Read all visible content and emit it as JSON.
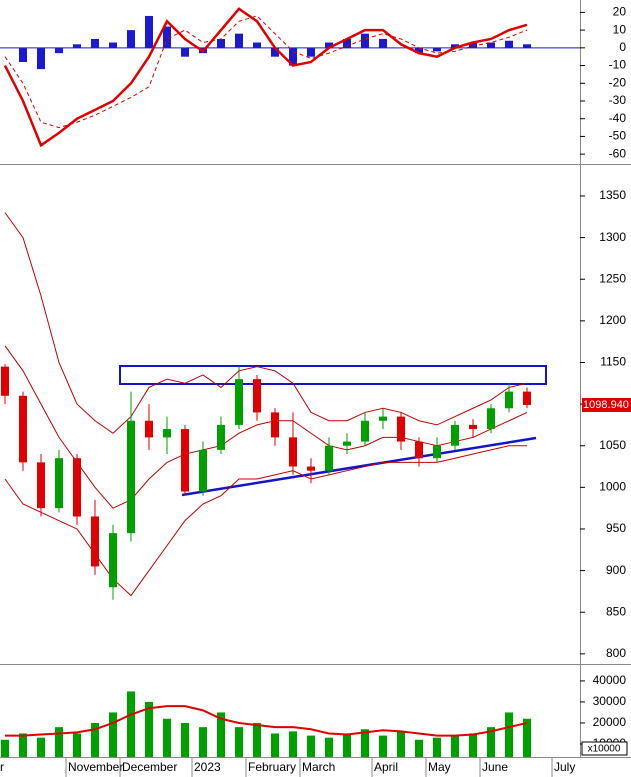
{
  "chart_data": [
    {
      "type": "macd",
      "ylim": [
        -65,
        27
      ],
      "yticks": [
        20,
        10,
        0,
        -10,
        -20,
        -30,
        -40,
        -50,
        -60
      ],
      "histogram": {
        "color": "#1a1ad0",
        "values": [
          0,
          -8,
          -12,
          -3,
          2,
          5,
          3,
          10,
          18,
          12,
          -5,
          -3,
          5,
          8,
          3,
          -5,
          -10,
          -5,
          3,
          5,
          8,
          5,
          0,
          -3,
          -2,
          2,
          3,
          3,
          4,
          2,
          null,
          null
        ]
      },
      "series": [
        {
          "color": "#e00000",
          "values": [
            -10,
            -30,
            -55,
            -48,
            -40,
            -35,
            -30,
            -20,
            -5,
            15,
            5,
            -2,
            10,
            22,
            15,
            0,
            -10,
            -8,
            0,
            5,
            10,
            10,
            2,
            -3,
            -5,
            0,
            3,
            5,
            10,
            13,
            null,
            null
          ]
        },
        {
          "color": "#e00000",
          "dashed": true,
          "values": [
            -5,
            -20,
            -42,
            -45,
            -42,
            -38,
            -33,
            -28,
            -22,
            5,
            10,
            3,
            5,
            15,
            18,
            8,
            -2,
            -6,
            -3,
            1,
            5,
            8,
            5,
            0,
            -3,
            -2,
            1,
            3,
            6,
            10,
            null,
            null
          ]
        }
      ]
    },
    {
      "type": "candlestick",
      "ylim": [
        789,
        1386
      ],
      "yticks": [
        1350,
        1300,
        1250,
        1200,
        1150,
        1100,
        1050,
        1000,
        950,
        900,
        850,
        800
      ],
      "up_color": "#00a000",
      "down_color": "#e00000",
      "open": [
        1145,
        1110,
        1030,
        975,
        1035,
        965,
        880,
        945,
        1080,
        1060,
        1070,
        995,
        1045,
        1075,
        1130,
        1090,
        1060,
        1025,
        1020,
        1050,
        1055,
        1080,
        1085,
        1055,
        1035,
        1050,
        1075,
        1070,
        1095,
        1115,
        null,
        null
      ],
      "high": [
        1148,
        1115,
        1040,
        1045,
        1040,
        985,
        955,
        1115,
        1100,
        1085,
        1075,
        1055,
        1085,
        1145,
        1135,
        1095,
        1090,
        1035,
        1060,
        1065,
        1090,
        1095,
        1090,
        1060,
        1060,
        1080,
        1082,
        1100,
        1125,
        1120,
        null,
        null
      ],
      "low": [
        1100,
        1020,
        965,
        970,
        955,
        895,
        865,
        935,
        1045,
        1040,
        990,
        990,
        1040,
        1070,
        1080,
        1050,
        1015,
        1005,
        1015,
        1040,
        1050,
        1070,
        1045,
        1025,
        1030,
        1045,
        1060,
        1065,
        1090,
        1095,
        null,
        null
      ],
      "close": [
        1110,
        1030,
        975,
        1035,
        965,
        905,
        945,
        1080,
        1060,
        1070,
        995,
        1045,
        1075,
        1130,
        1090,
        1060,
        1025,
        1020,
        1050,
        1055,
        1080,
        1085,
        1055,
        1035,
        1050,
        1075,
        1070,
        1095,
        1115,
        1099,
        null,
        null
      ],
      "bands": {
        "color": "#c00000",
        "upper": [
          1330,
          1300,
          1230,
          1150,
          1100,
          1080,
          1065,
          1085,
          1120,
          1130,
          1125,
          1135,
          1120,
          1140,
          1145,
          1140,
          1125,
          1090,
          1080,
          1080,
          1090,
          1095,
          1090,
          1080,
          1075,
          1085,
          1095,
          1105,
          1120,
          1125,
          null,
          null
        ],
        "middle": [
          1170,
          1140,
          1100,
          1060,
          1030,
          1000,
          975,
          985,
          1010,
          1030,
          1040,
          1045,
          1050,
          1065,
          1075,
          1080,
          1080,
          1065,
          1050,
          1045,
          1050,
          1060,
          1060,
          1055,
          1050,
          1055,
          1060,
          1070,
          1080,
          1090,
          null,
          null
        ],
        "lower": [
          1010,
          980,
          970,
          960,
          950,
          920,
          890,
          870,
          900,
          930,
          960,
          980,
          990,
          1010,
          1010,
          1015,
          1020,
          1010,
          1015,
          1020,
          1025,
          1030,
          1030,
          1030,
          1030,
          1035,
          1040,
          1045,
          1050,
          1050,
          null,
          null
        ]
      },
      "last_price": {
        "value": 1098.94,
        "label": "1098.940"
      }
    },
    {
      "type": "volume",
      "ylim": [
        3800,
        47100
      ],
      "yticks": [
        40000,
        30000,
        20000,
        10000
      ],
      "unit_label": "x10000",
      "color": "#00a000",
      "ma_color": "#e00000",
      "categories": [
        "r",
        null,
        null,
        null,
        "November",
        null,
        null,
        "December",
        null,
        null,
        null,
        "2023",
        null,
        null,
        "February",
        null,
        null,
        "March",
        null,
        null,
        null,
        "April",
        null,
        null,
        "May",
        null,
        null,
        "June",
        null,
        null,
        null,
        "July"
      ],
      "values": [
        12000,
        15000,
        13000,
        18000,
        15000,
        20000,
        25000,
        35000,
        30000,
        22000,
        20000,
        18000,
        25000,
        18000,
        20000,
        15000,
        16000,
        14000,
        13000,
        15000,
        17000,
        14000,
        16000,
        12000,
        13000,
        14000,
        15000,
        18000,
        25000,
        22000,
        null,
        null
      ],
      "ma": [
        14000,
        14000,
        14500,
        15000,
        15500,
        17000,
        20000,
        24000,
        27000,
        28000,
        28000,
        26000,
        22000,
        20000,
        19000,
        18000,
        18000,
        17000,
        15000,
        14500,
        15500,
        16500,
        16000,
        15000,
        14000,
        14000,
        14500,
        16000,
        18000,
        20000,
        null,
        null
      ]
    }
  ]
}
